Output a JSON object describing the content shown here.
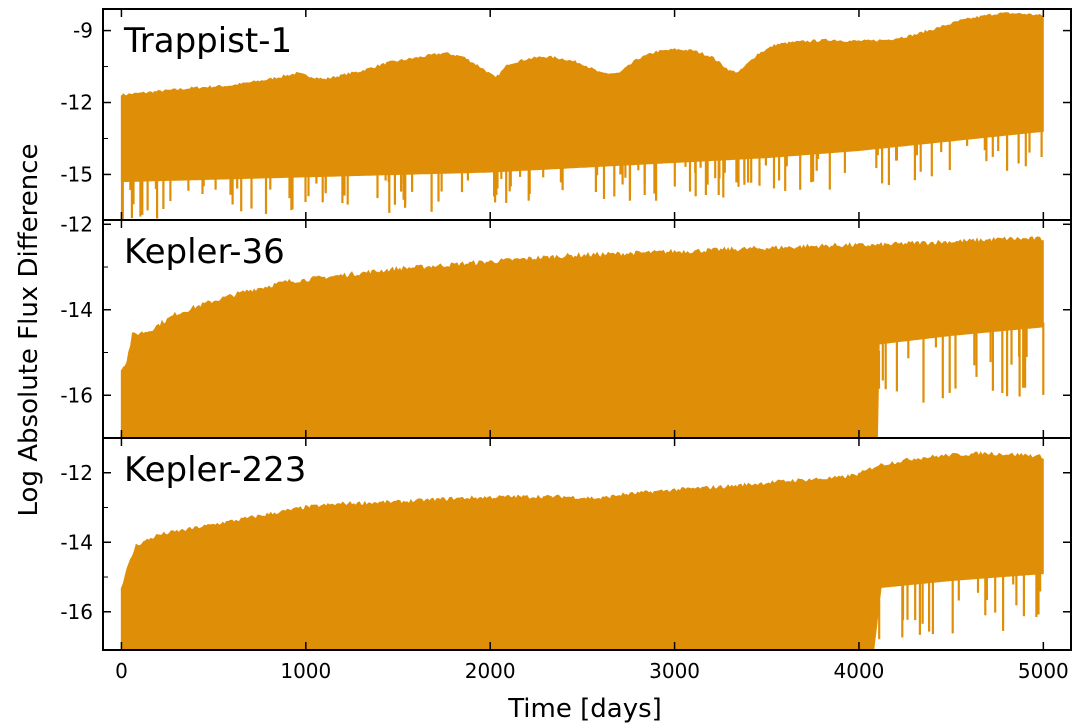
{
  "chart_data": {
    "type": "area",
    "xlabel": "Time [days]",
    "ylabel": "Log Absolute Flux Difference",
    "xlim": [
      -100,
      5150
    ],
    "x_ticks": [
      0,
      1000,
      2000,
      3000,
      4000,
      5000
    ],
    "series_color": "#df8f07",
    "panels": [
      {
        "name": "Trappist-1",
        "ylim": [
          -16.9,
          -8.1
        ],
        "y_ticks": [
          -9,
          -12,
          -15
        ],
        "y_tick_labels": [
          "-9",
          "-12",
          "-15"
        ],
        "upper_envelope": {
          "x": [
            0,
            200,
            400,
            600,
            800,
            950,
            1100,
            1300,
            1450,
            1600,
            1750,
            1850,
            1950,
            2030,
            2100,
            2200,
            2300,
            2400,
            2500,
            2600,
            2700,
            2800,
            2900,
            3000,
            3100,
            3200,
            3300,
            3350,
            3450,
            3550,
            3650,
            3750,
            3850,
            3950,
            4050,
            4150,
            4300,
            4450,
            4550,
            4650,
            4750,
            4850,
            4950,
            5000
          ],
          "y": [
            -11.7,
            -11.55,
            -11.4,
            -11.3,
            -11.05,
            -10.8,
            -11.05,
            -10.7,
            -10.35,
            -10.15,
            -9.95,
            -10.1,
            -10.55,
            -11.0,
            -10.4,
            -10.2,
            -10.1,
            -10.2,
            -10.4,
            -10.8,
            -10.8,
            -10.2,
            -9.9,
            -9.8,
            -9.85,
            -10.1,
            -10.7,
            -10.75,
            -10.0,
            -9.6,
            -9.5,
            -9.45,
            -9.4,
            -9.45,
            -9.45,
            -9.4,
            -9.2,
            -8.85,
            -8.6,
            -8.45,
            -8.3,
            -8.3,
            -8.35,
            -8.4
          ]
        },
        "lower_level": {
          "x": [
            0,
            500,
            1000,
            1500,
            2000,
            2500,
            3000,
            3500,
            4000,
            4500,
            5000
          ],
          "y": [
            -15.3,
            -15.2,
            -15.1,
            -15.0,
            -14.9,
            -14.7,
            -14.5,
            -14.3,
            -14.0,
            -13.6,
            -13.2
          ]
        }
      },
      {
        "name": "Kepler-36",
        "ylim": [
          -17.0,
          -11.9
        ],
        "y_ticks": [
          -12,
          -14,
          -16
        ],
        "y_tick_labels": [
          "-12",
          "-14",
          "-16"
        ],
        "upper_envelope": {
          "x": [
            0,
            30,
            60,
            150,
            300,
            500,
            700,
            900,
            1200,
            1500,
            1800,
            2100,
            2400,
            2700,
            3000,
            3300,
            3600,
            3900,
            4100,
            4300,
            4600,
            4800,
            5000
          ],
          "y": [
            -15.4,
            -15.2,
            -14.6,
            -14.5,
            -14.1,
            -13.8,
            -13.55,
            -13.35,
            -13.2,
            -13.05,
            -12.95,
            -12.85,
            -12.75,
            -12.7,
            -12.65,
            -12.6,
            -12.55,
            -12.5,
            -12.5,
            -12.45,
            -12.4,
            -12.35,
            -12.35
          ]
        },
        "lower_level": {
          "x": [
            0,
            4100,
            4110,
            4500,
            5000
          ],
          "y": [
            -17.0,
            -17.0,
            -14.8,
            -14.6,
            -14.4
          ]
        }
      },
      {
        "name": "Kepler-223",
        "ylim": [
          -17.1,
          -11.0
        ],
        "y_ticks": [
          -12,
          -14,
          -16
        ],
        "y_tick_labels": [
          "-12",
          "-14",
          "-16"
        ],
        "upper_envelope": {
          "x": [
            0,
            30,
            80,
            200,
            400,
            600,
            800,
            1000,
            1200,
            1500,
            1800,
            2100,
            2400,
            2600,
            2700,
            3000,
            3300,
            3600,
            3900,
            4000,
            4100,
            4300,
            4500,
            4700,
            4900,
            5000
          ],
          "y": [
            -15.3,
            -14.8,
            -14.1,
            -13.8,
            -13.6,
            -13.4,
            -13.2,
            -13.0,
            -12.9,
            -12.85,
            -12.75,
            -12.7,
            -12.7,
            -12.75,
            -12.65,
            -12.5,
            -12.4,
            -12.25,
            -12.15,
            -12.05,
            -11.8,
            -11.6,
            -11.5,
            -11.45,
            -11.5,
            -11.55
          ]
        },
        "lower_level": {
          "x": [
            0,
            4080,
            4120,
            4500,
            5000
          ],
          "y": [
            -17.1,
            -17.1,
            -15.3,
            -15.1,
            -14.9
          ]
        }
      }
    ]
  }
}
